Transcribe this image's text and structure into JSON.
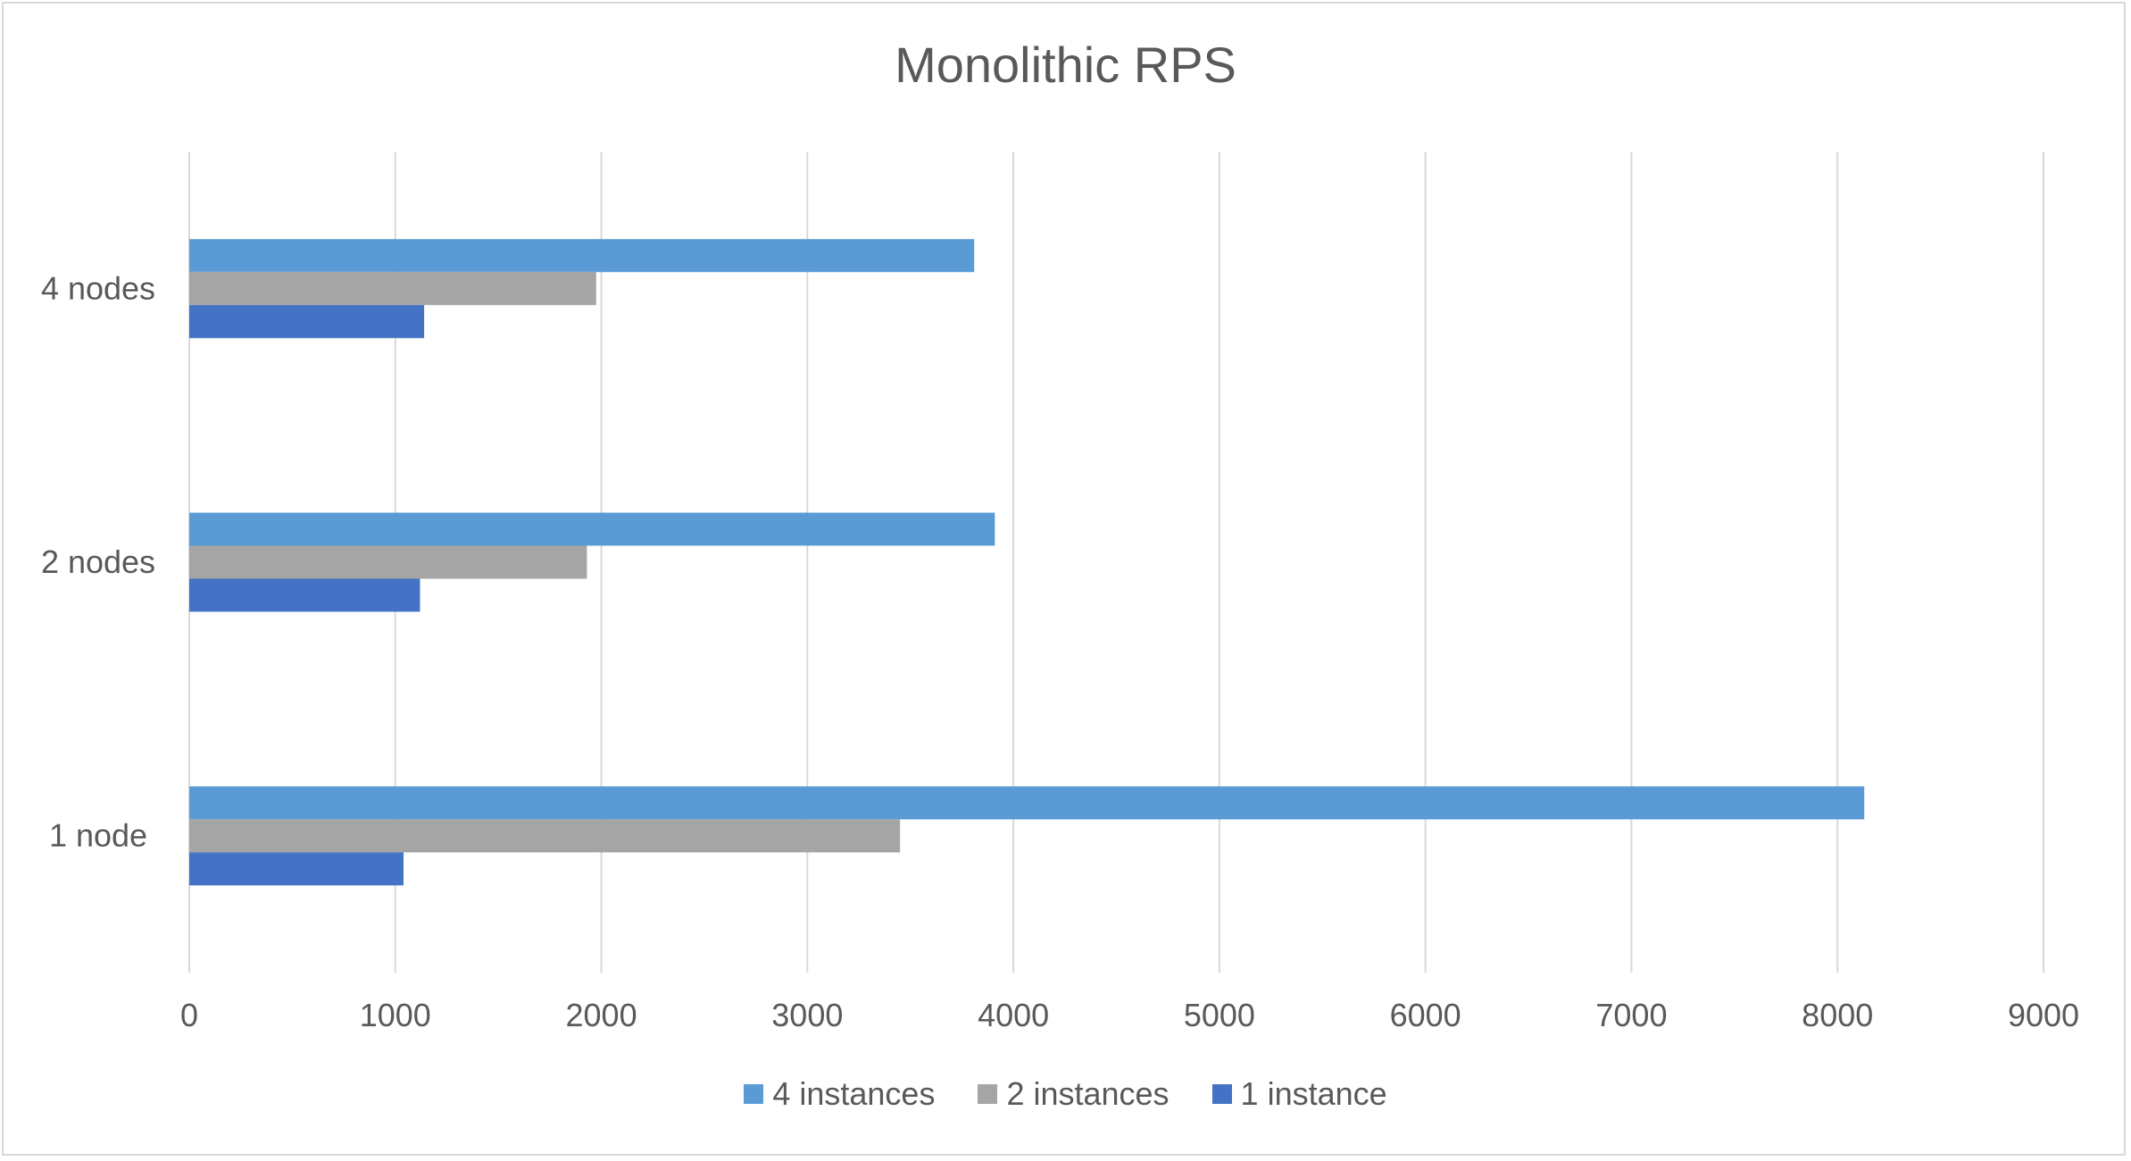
{
  "chart_data": {
    "type": "bar",
    "orientation": "horizontal",
    "title": "Monolithic RPS",
    "xlabel": "",
    "ylabel": "",
    "categories": [
      "4 nodes",
      "2 nodes",
      "1 node"
    ],
    "series": [
      {
        "name": "4 instances",
        "color": "#5b9bd5",
        "values": [
          3810,
          3910,
          8130
        ]
      },
      {
        "name": "2 instances",
        "color": "#a5a5a5",
        "values": [
          1975,
          1930,
          3450
        ]
      },
      {
        "name": "1 instance",
        "color": "#4472c4",
        "values": [
          1140,
          1120,
          1040
        ]
      }
    ],
    "xlim": [
      0,
      9000
    ],
    "xticks": [
      "0",
      "1000",
      "2000",
      "3000",
      "4000",
      "5000",
      "6000",
      "7000",
      "8000",
      "9000"
    ],
    "grid": true,
    "legend_position": "bottom"
  }
}
